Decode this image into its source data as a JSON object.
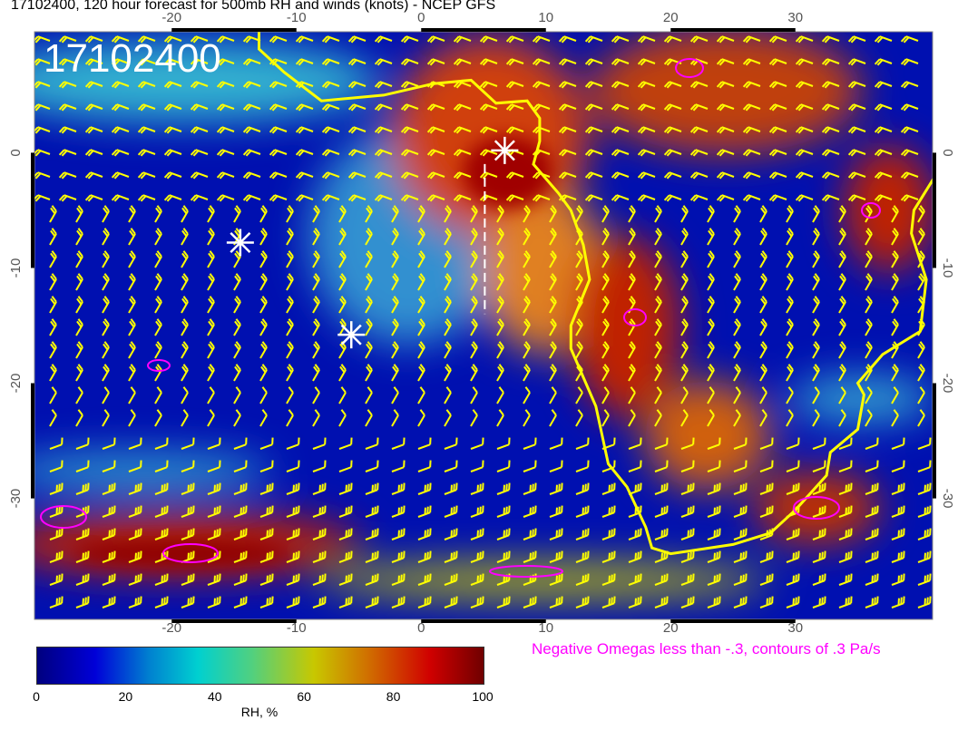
{
  "title": "17102400, 120 hour forecast for 500mb RH and winds (knots) - NCEP GFS",
  "timestamp_label": "17102400",
  "map": {
    "lon_range": [
      -31,
      41
    ],
    "lat_range": [
      -40.5,
      10.5
    ],
    "lon_ticks": [
      "-20",
      "-10",
      "0",
      "10",
      "20",
      "30"
    ],
    "lat_ticks": [
      "0",
      "-10",
      "-20",
      "-30"
    ],
    "coastline_color": "#ffff00",
    "wind_barb_color": "#ffff00",
    "omega_contour_color": "#ff00ff",
    "markers": [
      {
        "icon": "white-star-icon",
        "lon": -14.5,
        "lat": -7.8
      },
      {
        "icon": "white-star-icon",
        "lon": -5.6,
        "lat": -15.8
      },
      {
        "icon": "white-star-icon",
        "lon": 6.7,
        "lat": 0.2
      }
    ]
  },
  "legend": {
    "omega_note": "Negative Omegas less than -.3, contours of .3 Pa/s",
    "colorbar_label": "RH, %",
    "colorbar_ticks": [
      "0",
      "20",
      "40",
      "60",
      "80",
      "100"
    ],
    "colorbar_range": [
      0,
      100
    ]
  }
}
